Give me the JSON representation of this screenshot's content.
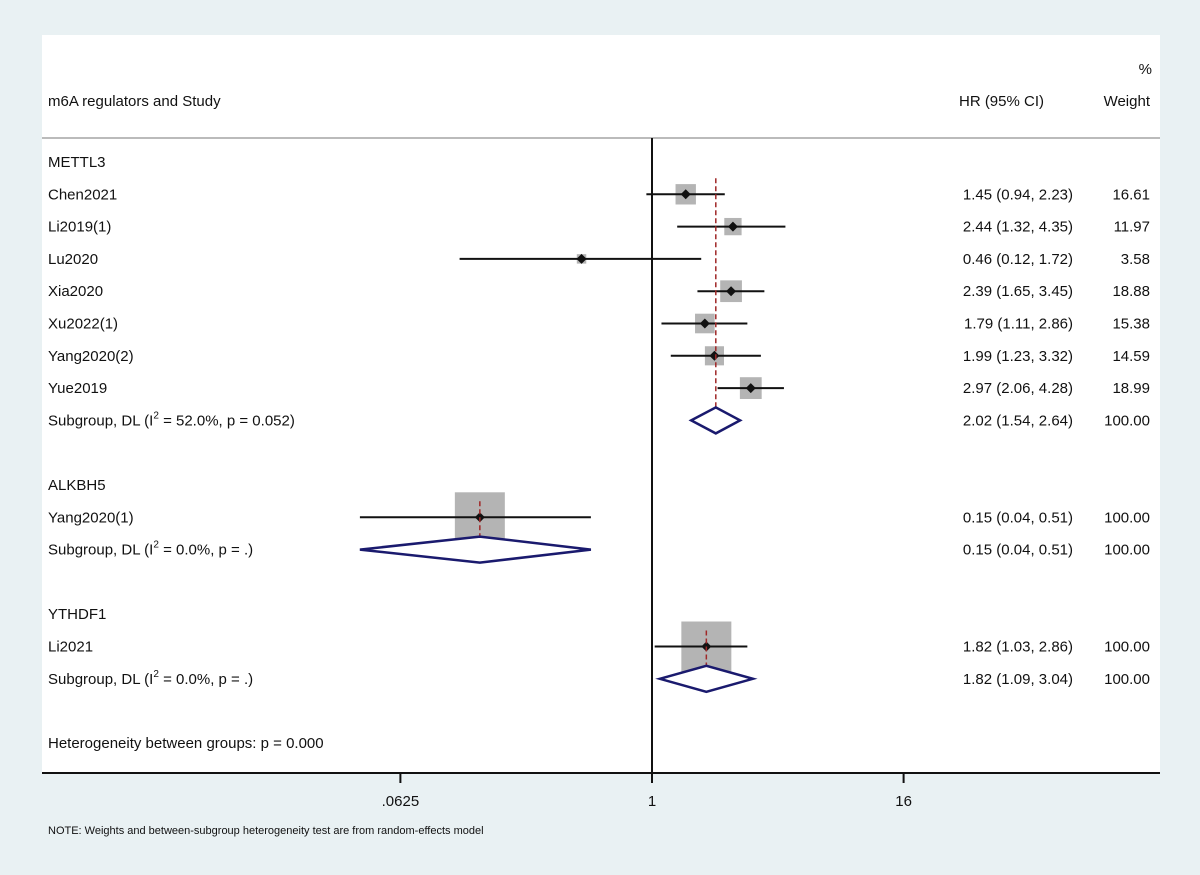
{
  "chart_data": {
    "type": "forest",
    "header": {
      "study": "m6A regulators and Study",
      "effect": "HR (95% CI)",
      "weight_top": "%",
      "weight": "Weight"
    },
    "x_scale": "log2",
    "xlim": [
      0.02,
      64
    ],
    "ticks": [
      {
        "value": 0.0625,
        "label": ".0625"
      },
      {
        "value": 1,
        "label": "1"
      },
      {
        "value": 16,
        "label": "16"
      }
    ],
    "colors": {
      "box": "#b4b4b4",
      "diamond": "#1a1a6e",
      "subgroup_line": "#a02828",
      "background": "#e9f1f3"
    },
    "groups": [
      {
        "name": "METTL3",
        "studies": [
          {
            "label": "Chen2021",
            "hr": 1.45,
            "lo": 0.94,
            "hi": 2.23,
            "ci_text": "1.45 (0.94, 2.23)",
            "weight": "16.61"
          },
          {
            "label": "Li2019(1)",
            "hr": 2.44,
            "lo": 1.32,
            "hi": 4.35,
            "ci_text": "2.44 (1.32, 4.35)",
            "weight": "11.97"
          },
          {
            "label": "Lu2020",
            "hr": 0.46,
            "lo": 0.12,
            "hi": 1.72,
            "ci_text": "0.46 (0.12, 1.72)",
            "weight": "3.58"
          },
          {
            "label": "Xia2020",
            "hr": 2.39,
            "lo": 1.65,
            "hi": 3.45,
            "ci_text": "2.39 (1.65, 3.45)",
            "weight": "18.88"
          },
          {
            "label": "Xu2022(1)",
            "hr": 1.79,
            "lo": 1.11,
            "hi": 2.86,
            "ci_text": "1.79 (1.11, 2.86)",
            "weight": "15.38"
          },
          {
            "label": "Yang2020(2)",
            "hr": 1.99,
            "lo": 1.23,
            "hi": 3.32,
            "ci_text": "1.99 (1.23, 3.32)",
            "weight": "14.59"
          },
          {
            "label": "Yue2019",
            "hr": 2.97,
            "lo": 2.06,
            "hi": 4.28,
            "ci_text": "2.97 (2.06, 4.28)",
            "weight": "18.99"
          }
        ],
        "subgroup": {
          "pre": "Subgroup, DL (I",
          "sup": "2",
          "post": " = 52.0%, p = 0.052)",
          "hr": 2.02,
          "lo": 1.54,
          "hi": 2.64,
          "ci_text": "2.02 (1.54, 2.64)",
          "weight": "100.00"
        }
      },
      {
        "name": "ALKBH5",
        "studies": [
          {
            "label": "Yang2020(1)",
            "hr": 0.15,
            "lo": 0.04,
            "hi": 0.51,
            "ci_text": "0.15 (0.04, 0.51)",
            "weight": "100.00"
          }
        ],
        "subgroup": {
          "pre": "Subgroup, DL (I",
          "sup": "2",
          "post": " = 0.0%, p = .)",
          "hr": 0.15,
          "lo": 0.04,
          "hi": 0.51,
          "ci_text": "0.15 (0.04, 0.51)",
          "weight": "100.00"
        }
      },
      {
        "name": "YTHDF1",
        "studies": [
          {
            "label": "Li2021",
            "hr": 1.82,
            "lo": 1.03,
            "hi": 2.86,
            "ci_text": "1.82 (1.03, 2.86)",
            "weight": "100.00"
          }
        ],
        "subgroup": {
          "pre": "Subgroup, DL (I",
          "sup": "2",
          "post": " = 0.0%, p = .)",
          "hr": 1.82,
          "lo": 1.09,
          "hi": 3.04,
          "ci_text": "1.82 (1.09, 3.04)",
          "weight": "100.00"
        }
      }
    ],
    "heterogeneity": "Heterogeneity between groups: p = 0.000",
    "note": "NOTE: Weights and between-subgroup heterogeneity test are from random-effects model"
  }
}
